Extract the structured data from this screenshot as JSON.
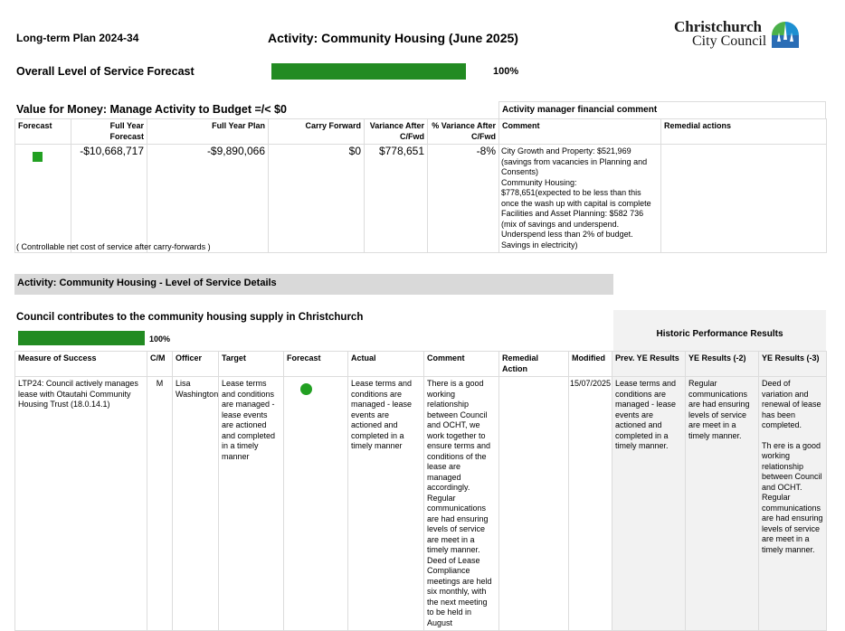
{
  "header": {
    "plan": "Long-term Plan 2024-34",
    "activity": "Activity: Community Housing (June 2025)",
    "logo_line1": "Christchurch",
    "logo_line2": "City Council"
  },
  "overall": {
    "label": "Overall Level of Service Forecast",
    "percent": "100%",
    "value": 100
  },
  "vfm": {
    "title": "Value for Money: Manage Activity to Budget =/< $0",
    "comment_header": "Activity manager financial comment",
    "columns": [
      "Forecast",
      "Full Year Forecast",
      "Full Year Plan",
      "Carry Forward",
      "Variance After C/Fwd",
      "% Variance After C/Fwd",
      "Comment",
      "Remedial actions"
    ],
    "row": {
      "forecast_color": "#22a022",
      "full_year_forecast": "-$10,668,717",
      "full_year_plan": "-$9,890,066",
      "carry_forward": "$0",
      "variance": "$778,651",
      "pct_variance": "-8%",
      "comment": [
        "City Growth and Property:     $521,969",
        "(savings from vacancies in Planning and Consents)",
        "Community Housing:",
        "$778,651(expected to be less than this once the wash up with capital is complete",
        "Facilities and Asset Planning: $582 736",
        "(mix of savings and underspend.",
        "Underspend less than 2% of budget.",
        "Savings in electricity)"
      ],
      "remedial": ""
    },
    "footnote": "( Controllable net cost of service after carry-forwards )"
  },
  "section": {
    "title": "Activity: Community Housing - Level of Service Details"
  },
  "los": {
    "title": "Council contributes to the community housing supply in Christchurch",
    "percent": "100%",
    "value": 100,
    "historic_title": "Historic Performance Results",
    "columns": [
      "Measure of Success",
      "C/M",
      "Officer",
      "Target",
      "Forecast",
      "Actual",
      "Comment",
      "Remedial Action",
      "Modified",
      "Prev. YE Results",
      "YE Results (-2)",
      "YE Results (-3)"
    ],
    "row": {
      "measure": "LTP24: Council actively manages lease with Otautahi Community Housing Trust (18.0.14.1)",
      "cm": "M",
      "officer": "Lisa Washington",
      "target": "Lease terms and conditions are managed - lease events are actioned and completed in a timely manner",
      "forecast_color": "#22a022",
      "actual": "Lease terms and conditions are managed - lease events are actioned and completed in a timely manner",
      "comment": "There is a good working relationship between Council and OCHT, we work together to ensure terms and conditions of the lease are managed accordingly. Regular communications are had ensuring levels of service are meet in a timely manner. Deed of Lease Compliance meetings are held six monthly, with the next meeting to be held in August",
      "remedial": "",
      "modified": "15/07/2025",
      "prev_ye": "Lease terms and conditions are managed - lease events are actioned and completed in a timely manner.",
      "ye2": "Regular communications are had ensuring levels of service are meet in a timely manner.",
      "ye3_a": "Deed of variation and renewal of lease has been completed.",
      "ye3_b": "Th ere is a good working relationship between Council and OCHT. Regular communications are had ensuring levels of service are meet in a timely manner."
    }
  }
}
